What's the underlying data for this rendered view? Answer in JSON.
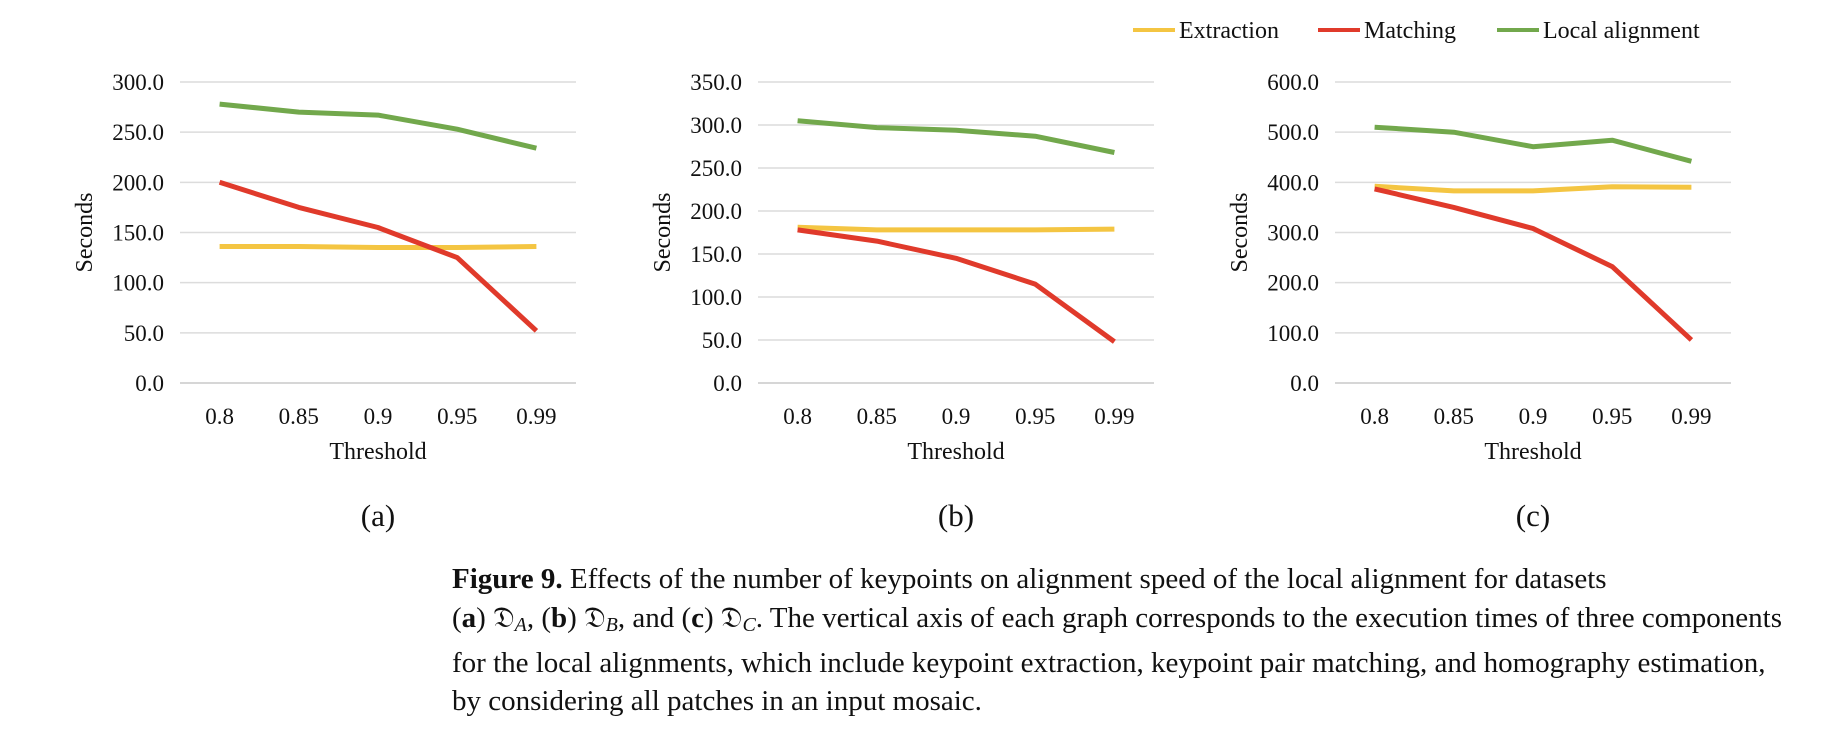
{
  "legend": {
    "entries": [
      {
        "name": "Extraction",
        "color": "#F4C542"
      },
      {
        "name": "Matching",
        "color": "#E03A2B"
      },
      {
        "name": "Local alignment",
        "color": "#72A84C"
      }
    ]
  },
  "chart_data": [
    {
      "type": "line",
      "panel_label": "(a)",
      "xlabel": "Threshold",
      "ylabel": "Seconds",
      "categories": [
        "0.8",
        "0.85",
        "0.9",
        "0.95",
        "0.99"
      ],
      "ylim": [
        0,
        300
      ],
      "yticks": [
        "0.0",
        "50.0",
        "100.0",
        "150.0",
        "200.0",
        "250.0",
        "300.0"
      ],
      "grid": true,
      "series": [
        {
          "name": "Extraction",
          "color": "#F4C542",
          "values": [
            136,
            136,
            135,
            135,
            136
          ]
        },
        {
          "name": "Matching",
          "color": "#E03A2B",
          "values": [
            200,
            175,
            155,
            125,
            52
          ]
        },
        {
          "name": "Local alignment",
          "color": "#72A84C",
          "values": [
            278,
            270,
            267,
            253,
            234
          ]
        }
      ]
    },
    {
      "type": "line",
      "panel_label": "(b)",
      "xlabel": "Threshold",
      "ylabel": "Seconds",
      "categories": [
        "0.8",
        "0.85",
        "0.9",
        "0.95",
        "0.99"
      ],
      "ylim": [
        0,
        350
      ],
      "yticks": [
        "0.0",
        "50.0",
        "100.0",
        "150.0",
        "200.0",
        "250.0",
        "300.0",
        "350.0"
      ],
      "grid": true,
      "series": [
        {
          "name": "Extraction",
          "color": "#F4C542",
          "values": [
            181,
            178,
            178,
            178,
            179
          ]
        },
        {
          "name": "Matching",
          "color": "#E03A2B",
          "values": [
            178,
            165,
            145,
            115,
            48
          ]
        },
        {
          "name": "Local alignment",
          "color": "#72A84C",
          "values": [
            305,
            297,
            294,
            287,
            268
          ]
        }
      ]
    },
    {
      "type": "line",
      "panel_label": "(c)",
      "xlabel": "Threshold",
      "ylabel": "Seconds",
      "categories": [
        "0.8",
        "0.85",
        "0.9",
        "0.95",
        "0.99"
      ],
      "ylim": [
        0,
        600
      ],
      "yticks": [
        "0.0",
        "100.0",
        "200.0",
        "300.0",
        "400.0",
        "500.0",
        "600.0"
      ],
      "grid": true,
      "series": [
        {
          "name": "Extraction",
          "color": "#F4C542",
          "values": [
            392,
            383,
            383,
            391,
            390
          ]
        },
        {
          "name": "Matching",
          "color": "#E03A2B",
          "values": [
            387,
            350,
            308,
            232,
            86
          ]
        },
        {
          "name": "Local alignment",
          "color": "#72A84C",
          "values": [
            510,
            500,
            471,
            484,
            442
          ]
        }
      ]
    }
  ],
  "caption": {
    "label": "Figure 9.",
    "t1": " Effects of the number of keypoints on alignment speed of the local alignment for datasets",
    "a": "a",
    "b": "b",
    "c": "c",
    "frak": "𝔇",
    "sub_a": "A",
    "sub_b": "B",
    "sub_c": "C",
    "t2": ". The vertical axis of each graph corresponds to the execution times of three components for the local alignments, which include keypoint extraction, keypoint pair matching, and homography estimation, by considering all patches in an input mosaic."
  }
}
